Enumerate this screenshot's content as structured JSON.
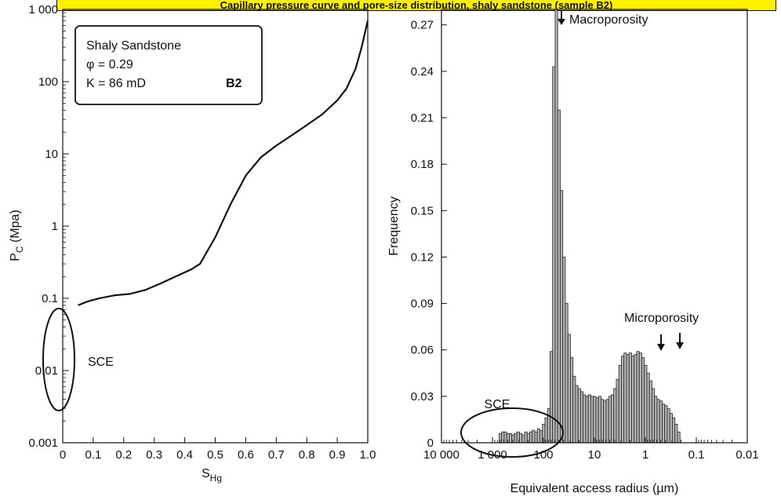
{
  "banner_text": "Capillary pressure curve and pore-size distribution, shaly sandstone (sample B2)",
  "chart_data": [
    {
      "type": "line",
      "xlabel_main": "S",
      "xlabel_sub": "Hg",
      "ylabel_main": "P",
      "ylabel_sub": "C",
      "ylabel_rest": " (Mpa)",
      "xlim": [
        0,
        1.0
      ],
      "ylim": [
        0.001,
        1000
      ],
      "yscale": "log",
      "x_ticks": [
        "0",
        "0.1",
        "0.2",
        "0.3",
        "0.4",
        "0.5",
        "0.6",
        "0.7",
        "0.8",
        "0.9",
        "1.0"
      ],
      "y_ticks": [
        "1 000",
        "100",
        "10",
        "1",
        "0.1",
        "0.01",
        "0.001"
      ],
      "legend_box": {
        "line1": "Shaly Sandstone",
        "line2": "φ = 0.29",
        "line3": "K = 86 mD",
        "tag": "B2"
      },
      "annotations": [
        {
          "text": "SCE",
          "x": 0.0,
          "y": 0.015
        }
      ],
      "series": [
        {
          "x": [
            0.05,
            0.08,
            0.12,
            0.17,
            0.22,
            0.27,
            0.32,
            0.37,
            0.42,
            0.45,
            0.5,
            0.55,
            0.6,
            0.65,
            0.7,
            0.75,
            0.8,
            0.85,
            0.9,
            0.93,
            0.96,
            0.98,
            1.0
          ],
          "y": [
            0.08,
            0.09,
            0.1,
            0.11,
            0.115,
            0.13,
            0.16,
            0.2,
            0.25,
            0.3,
            0.7,
            2.0,
            5.0,
            9.0,
            13,
            18,
            25,
            35,
            55,
            80,
            150,
            300,
            700
          ]
        }
      ]
    },
    {
      "type": "bar",
      "xlabel": "Equivalent access radius (µm)",
      "ylabel": "Frequency",
      "xscale": "log-reversed",
      "xlim": [
        10000,
        0.01
      ],
      "ylim": [
        0,
        0.28
      ],
      "x_ticks": [
        "10 000",
        "1 000",
        "100",
        "10",
        "1",
        "0.1",
        "0.01"
      ],
      "y_ticks": [
        "0",
        "0.03",
        "0.06",
        "0.09",
        "0.12",
        "0.15",
        "0.18",
        "0.21",
        "0.24",
        "0.27"
      ],
      "annotations": [
        {
          "text": "Macroporosity",
          "x": 141,
          "y": 0.28
        },
        {
          "text": "Microporosity",
          "x": 0.7,
          "y": 0.06
        },
        {
          "text": "SCE",
          "x": 1000,
          "y": 0.008
        }
      ],
      "bin_log10_start": 2.87,
      "bin_log10_step": -0.05,
      "values": [
        0.006,
        0.007,
        0.007,
        0.006,
        0.006,
        0.005,
        0.006,
        0.007,
        0.006,
        0.005,
        0.007,
        0.006,
        0.007,
        0.008,
        0.007,
        0.009,
        0.008,
        0.012,
        0.016,
        0.022,
        0.059,
        0.243,
        0.28,
        0.215,
        0.163,
        0.12,
        0.09,
        0.07,
        0.055,
        0.043,
        0.037,
        0.035,
        0.033,
        0.031,
        0.03,
        0.031,
        0.03,
        0.03,
        0.029,
        0.03,
        0.028,
        0.027,
        0.028,
        0.03,
        0.031,
        0.035,
        0.041,
        0.05,
        0.056,
        0.058,
        0.057,
        0.058,
        0.056,
        0.057,
        0.059,
        0.058,
        0.055,
        0.05,
        0.045,
        0.04,
        0.035,
        0.03,
        0.028,
        0.027,
        0.025,
        0.024,
        0.022,
        0.019,
        0.016,
        0.012,
        0.007
      ]
    }
  ]
}
